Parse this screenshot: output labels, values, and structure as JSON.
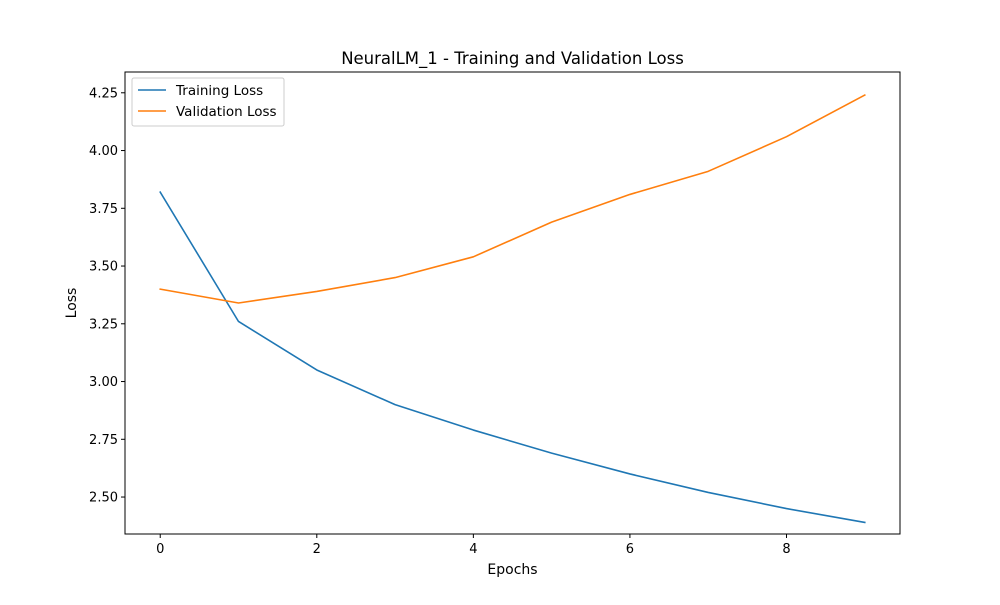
{
  "chart_data": {
    "type": "line",
    "title": "NeuralLM_1 - Training and Validation Loss",
    "xlabel": "Epochs",
    "ylabel": "Loss",
    "x": [
      0,
      1,
      2,
      3,
      4,
      5,
      6,
      7,
      8,
      9
    ],
    "xlim": [
      -0.45,
      9.45
    ],
    "ylim": [
      2.34,
      4.34
    ],
    "xticks": [
      0,
      2,
      4,
      6,
      8
    ],
    "xtick_labels": [
      "0",
      "2",
      "4",
      "6",
      "8"
    ],
    "yticks": [
      2.5,
      2.75,
      3.0,
      3.25,
      3.5,
      3.75,
      4.0,
      4.25
    ],
    "ytick_labels": [
      "2.50",
      "2.75",
      "3.00",
      "3.25",
      "3.50",
      "3.75",
      "4.00",
      "4.25"
    ],
    "grid": false,
    "legend_position": "top-left",
    "series": [
      {
        "name": "Training Loss",
        "color": "#1f77b4",
        "values": [
          3.82,
          3.26,
          3.05,
          2.9,
          2.79,
          2.69,
          2.6,
          2.52,
          2.45,
          2.39
        ]
      },
      {
        "name": "Validation Loss",
        "color": "#ff7f0e",
        "values": [
          3.4,
          3.34,
          3.39,
          3.45,
          3.54,
          3.69,
          3.81,
          3.91,
          4.06,
          4.24
        ]
      }
    ]
  }
}
